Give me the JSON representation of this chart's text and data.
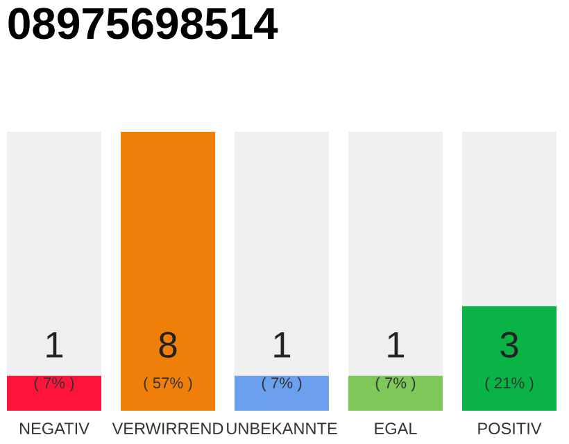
{
  "chart_data": {
    "type": "bar",
    "title": "08975698514",
    "categories": [
      "NEGATIV",
      "VERWIRREND",
      "UNBEKANNTE",
      "EGAL",
      "POSITIV"
    ],
    "values": [
      1,
      8,
      1,
      1,
      3
    ],
    "colors": [
      "#ff1439",
      "#f07f0a",
      "#6aa0ee",
      "#7ec85a",
      "#0ab345"
    ],
    "ylim": [
      0,
      8
    ],
    "data_labels": true,
    "annotations": [
      "( 7% )",
      "( 57% )",
      "( 7% )",
      "( 7% )",
      "( 21% )"
    ]
  }
}
